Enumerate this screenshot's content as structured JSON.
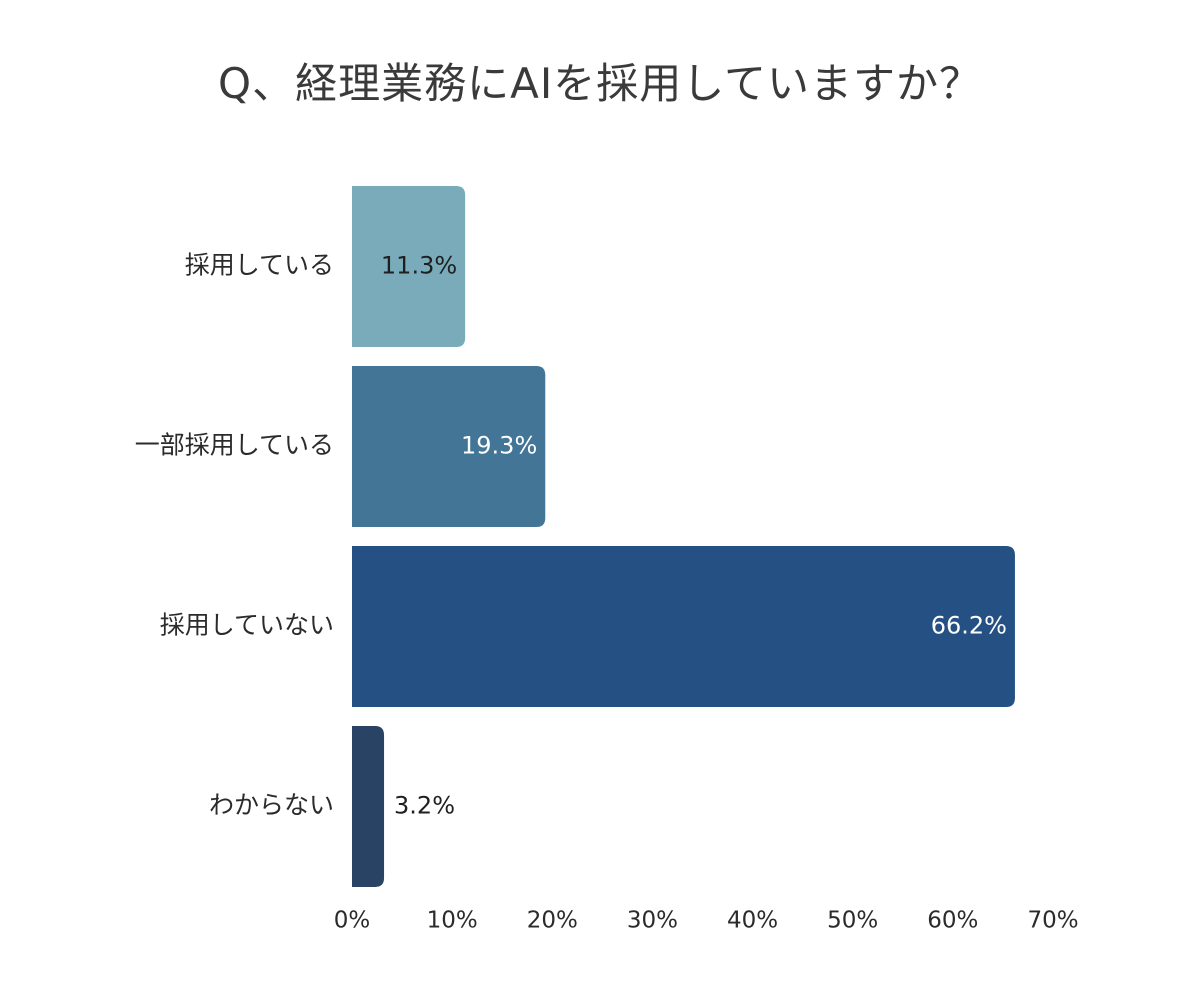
{
  "chart_data": {
    "type": "bar",
    "orientation": "horizontal",
    "title": "Q、経理業務にAIを採用していますか？",
    "categories": [
      "採用している",
      "一部採用している",
      "採用していない",
      "わからない"
    ],
    "values": [
      11.3,
      19.3,
      66.2,
      3.2
    ],
    "value_labels": [
      "11.3%",
      "19.3%",
      "66.2%",
      "3.2%"
    ],
    "bar_colors": [
      "#7aabbb",
      "#437597",
      "#245083",
      "#284363"
    ],
    "value_label_colors": [
      "#1f1f1f",
      "#ffffff",
      "#ffffff",
      "#1f1f1f"
    ],
    "xlim": [
      0,
      70
    ],
    "xticks": [
      0,
      10,
      20,
      30,
      40,
      50,
      60,
      70
    ],
    "xtick_labels": [
      "0%",
      "10%",
      "20%",
      "30%",
      "40%",
      "50%",
      "60%",
      "70%"
    ],
    "grid": false,
    "xlabel": "",
    "ylabel": ""
  }
}
